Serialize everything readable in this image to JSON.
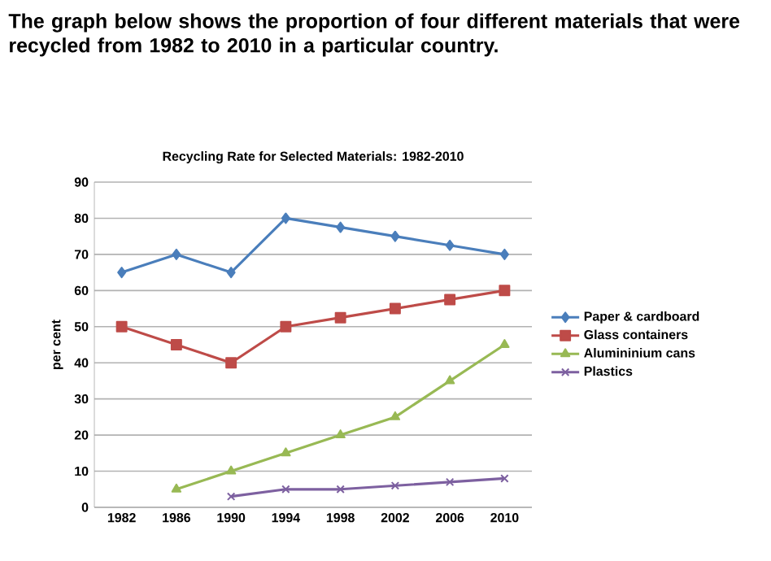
{
  "chart_data": {
    "type": "line",
    "title": "Recycling Rate for Selected Materials: 1982-2010",
    "annotations": [
      "The graph below shows the proportion of four different materials that were recycled from 1982 to 2010 in a particular country."
    ],
    "ylabel": "per cent",
    "categories": [
      "1982",
      "1986",
      "1990",
      "1994",
      "1998",
      "2002",
      "2006",
      "2010"
    ],
    "series": [
      {
        "name": "Paper & cardboard",
        "color": "#4a7ebb",
        "marker": "diamond",
        "values": [
          65,
          70,
          65,
          80,
          77.5,
          75,
          72.5,
          70
        ]
      },
      {
        "name": "Glass containers",
        "color": "#be4b48",
        "marker": "square",
        "values": [
          50,
          45,
          40,
          50,
          52.5,
          55,
          57.5,
          60
        ]
      },
      {
        "name": "Alumininium cans",
        "color": "#98b954",
        "marker": "triangle",
        "values": [
          null,
          5,
          10,
          15,
          20,
          25,
          35,
          45
        ]
      },
      {
        "name": "Plastics",
        "color": "#7d60a0",
        "marker": "cross",
        "values": [
          null,
          null,
          3,
          5,
          5,
          6,
          7,
          8
        ]
      }
    ],
    "ylim": [
      0,
      90
    ],
    "yticks": [
      0,
      10,
      20,
      30,
      40,
      50,
      60,
      70,
      80,
      90
    ],
    "grid": "y",
    "legend": "right",
    "line_style": "solid"
  }
}
